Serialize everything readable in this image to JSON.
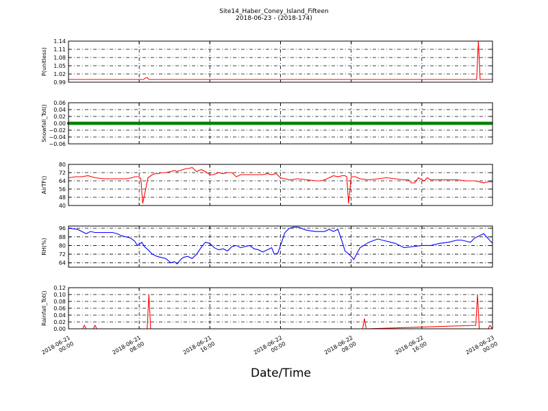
{
  "header": {
    "title": "Site14_Haber_Coney_Island_Fifteen",
    "subtitle": "2018-06-23 - (2018-174)"
  },
  "xlabel": "Date/Time",
  "chart_data": [
    {
      "type": "line",
      "ylabel": "P(unitless)",
      "ylim": [
        0.99,
        1.14
      ],
      "yticks": [
        "0.99",
        "1.02",
        "1.05",
        "1.08",
        "1.11",
        "1.14"
      ],
      "grid": true,
      "color": "#ff0000",
      "marker": "none",
      "xlim": [
        0,
        48
      ],
      "xticks": [
        "2018-06-21\n00:00",
        "2018-06-21\n08:00",
        "2018-06-21\n16:00",
        "2018-06-22\n00:00",
        "2018-06-22\n08:00",
        "2018-06-22\n16:00",
        "2018-06-23\n00:00"
      ],
      "series": [
        {
          "x": [
            0,
            8.5,
            8.7,
            8.9,
            9.1,
            46.2,
            46.4,
            46.6,
            48
          ],
          "y": [
            1.0,
            1.0,
            1.005,
            1.007,
            1.0,
            1.0,
            1.14,
            1.0,
            1.0
          ]
        }
      ]
    },
    {
      "type": "line",
      "ylabel": "Snowfall_Tot()",
      "ylim": [
        -0.06,
        0.06
      ],
      "yticks": [
        "−0.06",
        "−0.04",
        "−0.02",
        "0.00",
        "0.02",
        "0.04",
        "0.06"
      ],
      "grid": true,
      "color": "#008000",
      "marker": "dot",
      "xlim": [
        0,
        48
      ],
      "series": [
        {
          "x": [
            0,
            48
          ],
          "y": [
            0,
            0
          ]
        }
      ]
    },
    {
      "type": "line",
      "ylabel": "AirTF()",
      "ylim": [
        40,
        80
      ],
      "yticks": [
        "40",
        "48",
        "56",
        "64",
        "72",
        "80"
      ],
      "grid": true,
      "color": "#ff0000",
      "marker": "none",
      "xlim": [
        0,
        48
      ],
      "series": [
        {
          "x": [
            0,
            0.8,
            1.5,
            2.2,
            3.0,
            4.0,
            5.5,
            6.5,
            7.2,
            7.5,
            7.8,
            8.0,
            8.2,
            8.4,
            9.0,
            9.5,
            9.8,
            10.2,
            10.5,
            11.0,
            11.5,
            12.0,
            12.3,
            12.6,
            13.0,
            13.3,
            13.6,
            14.0,
            14.5,
            15.0,
            15.5,
            16.0,
            16.4,
            17.0,
            17.5,
            18.0,
            18.5,
            19.0,
            19.5,
            20.0,
            20.5,
            21.0,
            21.5,
            22.0,
            22.5,
            23.0,
            23.5,
            24.0,
            25.0,
            26.0,
            27.0,
            28.0,
            28.5,
            29.0,
            29.5,
            30.0,
            30.5,
            31.0,
            31.3,
            31.5,
            31.7,
            32.0,
            32.5,
            33.0,
            34.0,
            35.0,
            36.0,
            37.0,
            38.0,
            38.5,
            38.8,
            39.2,
            39.6,
            40.0,
            40.3,
            40.6,
            41.0,
            42.0,
            43.0,
            44.0,
            45.0,
            46.0,
            46.5,
            47.0,
            47.5,
            48.0
          ],
          "y": [
            67,
            68,
            68,
            69,
            67,
            66,
            66,
            66,
            67,
            68,
            68,
            68,
            66,
            42,
            67,
            70,
            71,
            71,
            72,
            72,
            73,
            74,
            73,
            74,
            75,
            76,
            76,
            77,
            73,
            75,
            73,
            70,
            70,
            72,
            71,
            72,
            72,
            68,
            70,
            70,
            70,
            70,
            70,
            70,
            71,
            70,
            71,
            67,
            65,
            66,
            65,
            64,
            64,
            65,
            67,
            69,
            68,
            69,
            69,
            68,
            42,
            68,
            68,
            66,
            65,
            66,
            67,
            66,
            65,
            65,
            62,
            62,
            67,
            65,
            64,
            67,
            65,
            65,
            65,
            65,
            64,
            64,
            63,
            62,
            63,
            63
          ]
        }
      ]
    },
    {
      "type": "line",
      "ylabel": "RH(%)",
      "ylim": [
        60,
        98
      ],
      "yticks": [
        "64",
        "72",
        "80",
        "88",
        "96"
      ],
      "grid": true,
      "color": "#0000ff",
      "marker": "none",
      "xlim": [
        0,
        48
      ],
      "series": [
        {
          "x": [
            0,
            1.0,
            1.5,
            2.0,
            2.5,
            3.0,
            4.0,
            5.0,
            5.5,
            6.0,
            7.0,
            7.5,
            7.8,
            8.0,
            8.3,
            8.6,
            9.0,
            9.5,
            10.0,
            10.5,
            11.0,
            11.3,
            11.6,
            12.0,
            12.3,
            12.7,
            13.0,
            13.5,
            14.0,
            14.5,
            15.0,
            15.5,
            16.0,
            16.5,
            17.0,
            17.5,
            18.0,
            18.5,
            19.0,
            19.5,
            20.0,
            20.5,
            21.0,
            21.5,
            22.0,
            22.5,
            23.0,
            23.3,
            23.7,
            24.0,
            24.5,
            25.0,
            25.5,
            26.0,
            27.0,
            28.0,
            29.0,
            29.5,
            30.0,
            30.5,
            31.0,
            31.3,
            31.6,
            32.0,
            32.3,
            32.6,
            33.0,
            34.0,
            35.0,
            36.0,
            37.0,
            38.0,
            39.0,
            40.0,
            41.0,
            42.0,
            43.0,
            44.0,
            44.5,
            45.0,
            45.5,
            46.0,
            46.5,
            47.0,
            48.0
          ],
          "y": [
            96,
            95,
            93,
            91,
            93,
            92,
            92,
            92,
            91,
            89,
            87,
            84,
            80,
            81,
            83,
            79,
            76,
            72,
            70,
            69,
            68,
            66,
            64,
            65,
            63,
            67,
            69,
            70,
            68,
            72,
            78,
            83,
            82,
            78,
            76,
            77,
            75,
            79,
            80,
            78,
            79,
            80,
            77,
            76,
            74,
            76,
            78,
            72,
            73,
            80,
            92,
            96,
            97,
            97,
            94,
            93,
            93,
            95,
            93,
            95,
            83,
            75,
            73,
            70,
            67,
            72,
            78,
            83,
            86,
            84,
            82,
            78,
            79,
            80,
            80,
            82,
            83,
            85,
            85,
            84,
            83,
            87,
            89,
            91,
            82
          ]
        }
      ]
    },
    {
      "type": "line",
      "ylabel": "Rainfall_Tot()",
      "ylim": [
        0.0,
        0.12
      ],
      "yticks": [
        "0.00",
        "0.02",
        "0.04",
        "0.06",
        "0.08",
        "0.10",
        "0.12"
      ],
      "grid": true,
      "color": "#ff0000",
      "marker": "none",
      "xlim": [
        0,
        48
      ],
      "series": [
        {
          "x": [
            0,
            1.6,
            1.8,
            2.0,
            2.8,
            3.0,
            3.2,
            8.9,
            9.1,
            9.3,
            33.3,
            33.5,
            33.7,
            46.1,
            46.3,
            46.5,
            47.5,
            47.7,
            48.0
          ],
          "y": [
            0,
            0,
            0.01,
            0,
            0,
            0.01,
            0,
            0,
            0.1,
            0,
            0,
            0.03,
            0,
            0.01,
            0.1,
            0,
            0,
            0.01,
            0
          ]
        }
      ]
    }
  ]
}
